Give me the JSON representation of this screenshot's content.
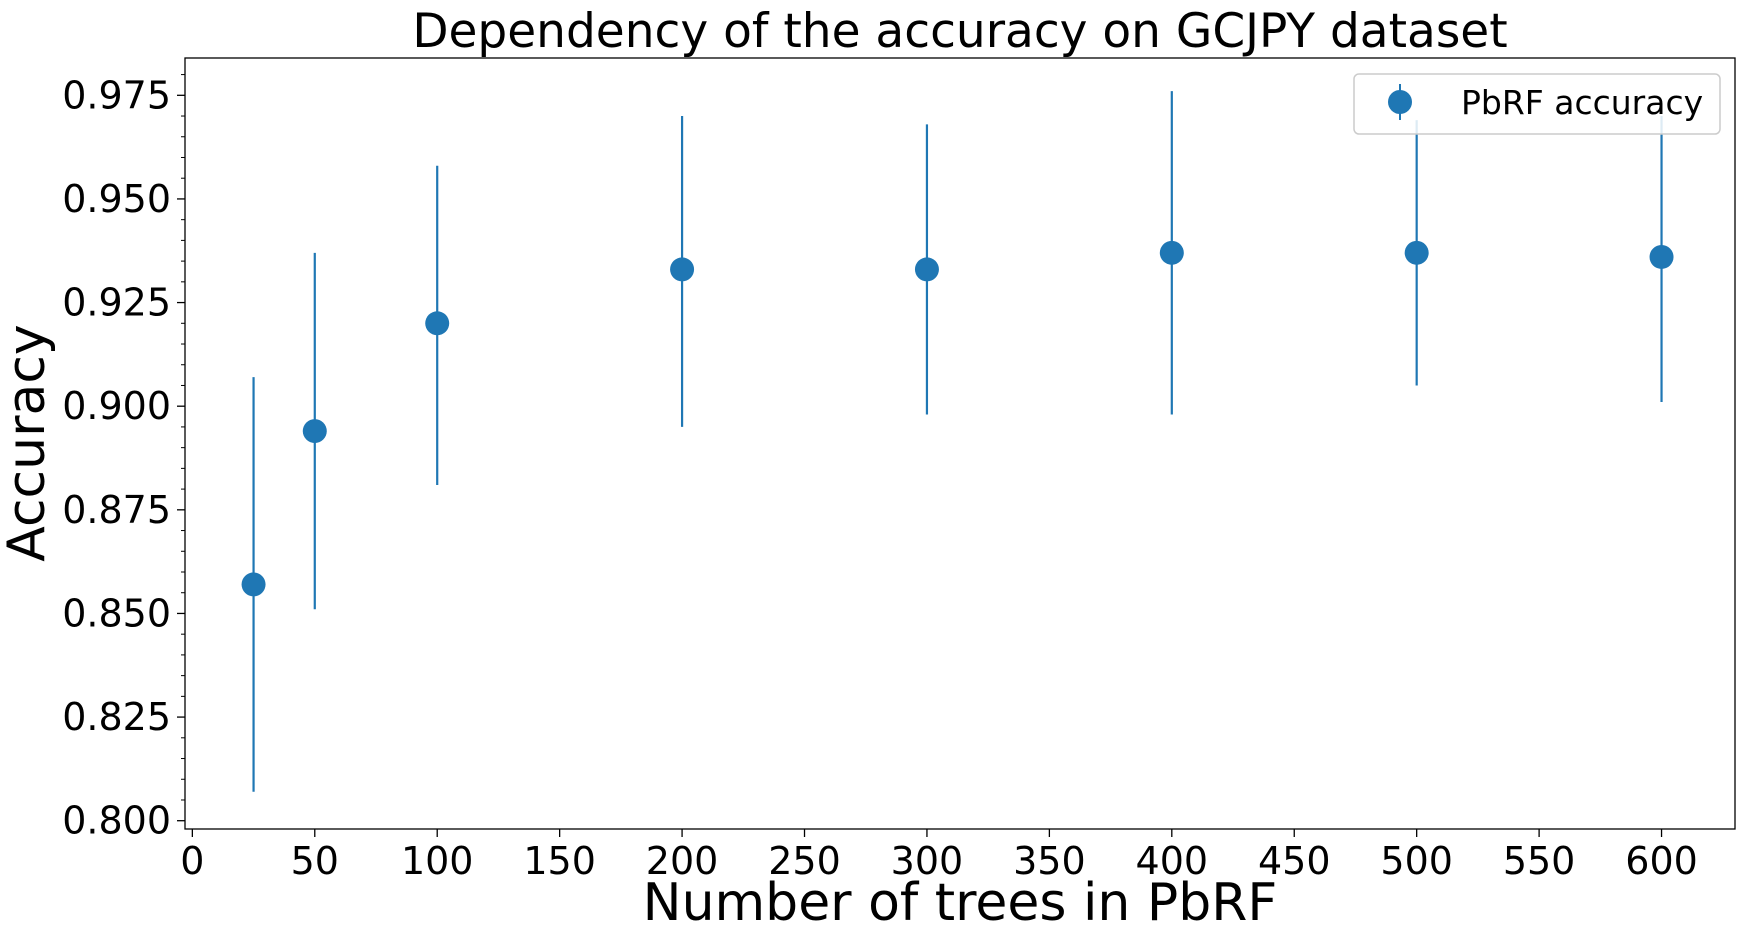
{
  "chart_data": {
    "type": "scatter",
    "title": "Dependency of the accuracy on GCJPY dataset",
    "xlabel": "Number of trees in PbRF",
    "ylabel": "Accuracy",
    "xlim": [
      -3,
      630
    ],
    "ylim": [
      0.798,
      0.984
    ],
    "x_ticks": [
      0,
      50,
      100,
      150,
      200,
      250,
      300,
      350,
      400,
      450,
      500,
      550,
      600
    ],
    "y_ticks": [
      0.8,
      0.825,
      0.85,
      0.875,
      0.9,
      0.925,
      0.95,
      0.975
    ],
    "y_tick_labels": [
      "0.800",
      "0.825",
      "0.850",
      "0.875",
      "0.900",
      "0.925",
      "0.950",
      "0.975"
    ],
    "y_minor_step": 0.005,
    "grid": false,
    "legend_position": "top-right",
    "color": "#1f77b4",
    "series": [
      {
        "name": "PbRF accuracy",
        "error_bars": true,
        "points": [
          {
            "x": 25,
            "y": 0.857,
            "err_low": 0.807,
            "err_high": 0.907
          },
          {
            "x": 50,
            "y": 0.894,
            "err_low": 0.851,
            "err_high": 0.937
          },
          {
            "x": 100,
            "y": 0.92,
            "err_low": 0.881,
            "err_high": 0.958
          },
          {
            "x": 200,
            "y": 0.933,
            "err_low": 0.895,
            "err_high": 0.97
          },
          {
            "x": 300,
            "y": 0.933,
            "err_low": 0.898,
            "err_high": 0.968
          },
          {
            "x": 400,
            "y": 0.937,
            "err_low": 0.898,
            "err_high": 0.976
          },
          {
            "x": 500,
            "y": 0.937,
            "err_low": 0.905,
            "err_high": 0.969
          },
          {
            "x": 600,
            "y": 0.936,
            "err_low": 0.901,
            "err_high": 0.97
          }
        ]
      }
    ]
  }
}
